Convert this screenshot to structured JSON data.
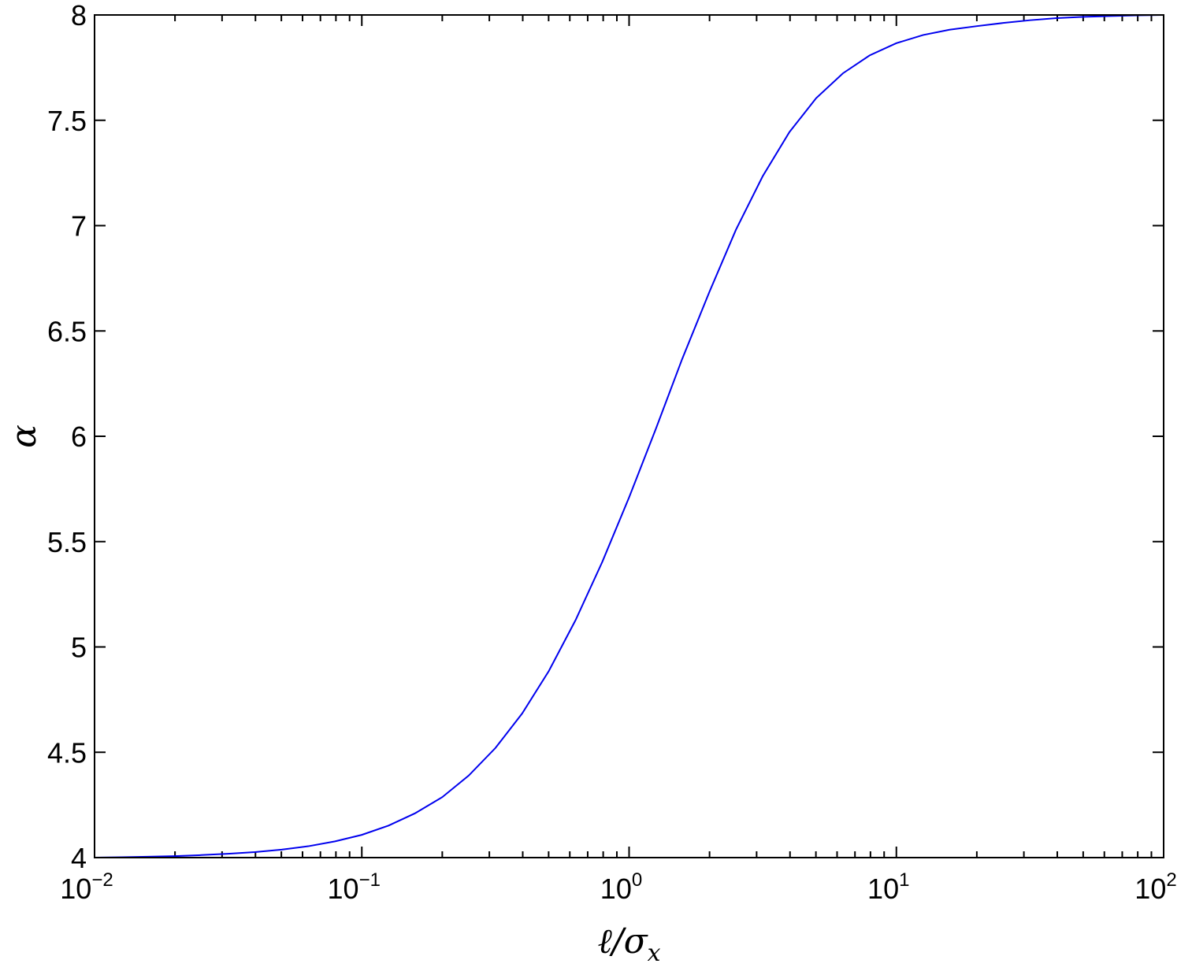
{
  "chart_data": {
    "type": "line",
    "xlabel": "ℓ/σx",
    "xlabel_parts": {
      "main": "ℓ/σ",
      "sub": "x"
    },
    "ylabel": "α",
    "x_scale": "log",
    "xlim": [
      0.01,
      100
    ],
    "ylim": [
      4,
      8
    ],
    "x_ticks": [
      {
        "value": 0.01,
        "base": "10",
        "exp": "−2"
      },
      {
        "value": 0.1,
        "base": "10",
        "exp": "−1"
      },
      {
        "value": 1,
        "base": "10",
        "exp": "0"
      },
      {
        "value": 10,
        "base": "10",
        "exp": "1"
      },
      {
        "value": 100,
        "base": "10",
        "exp": "2"
      }
    ],
    "y_ticks": [
      "4",
      "4.5",
      "5",
      "5.5",
      "6",
      "6.5",
      "7",
      "7.5",
      "8"
    ],
    "grid": false,
    "series": [
      {
        "color": "#0000ee",
        "x": [
          0.01,
          0.0126,
          0.0158,
          0.02,
          0.0251,
          0.0316,
          0.0398,
          0.0501,
          0.0631,
          0.0794,
          0.1,
          0.126,
          0.158,
          0.2,
          0.251,
          0.316,
          0.398,
          0.501,
          0.631,
          0.794,
          1.0,
          1.26,
          1.58,
          2.0,
          2.51,
          3.16,
          3.98,
          5.01,
          6.31,
          7.94,
          10.0,
          12.6,
          15.8,
          20.0,
          25.1,
          31.6,
          39.8,
          50.1,
          63.1,
          79.4,
          100
        ],
        "y": [
          4.0,
          4.002,
          4.004,
          4.007,
          4.012,
          4.018,
          4.026,
          4.038,
          4.054,
          4.077,
          4.108,
          4.152,
          4.21,
          4.287,
          4.389,
          4.52,
          4.684,
          4.886,
          5.128,
          5.404,
          5.71,
          6.036,
          6.367,
          6.687,
          6.98,
          7.234,
          7.444,
          7.605,
          7.723,
          7.808,
          7.866,
          7.905,
          7.93,
          7.947,
          7.962,
          7.975,
          7.985,
          7.991,
          7.995,
          7.998,
          8.0
        ]
      }
    ]
  }
}
